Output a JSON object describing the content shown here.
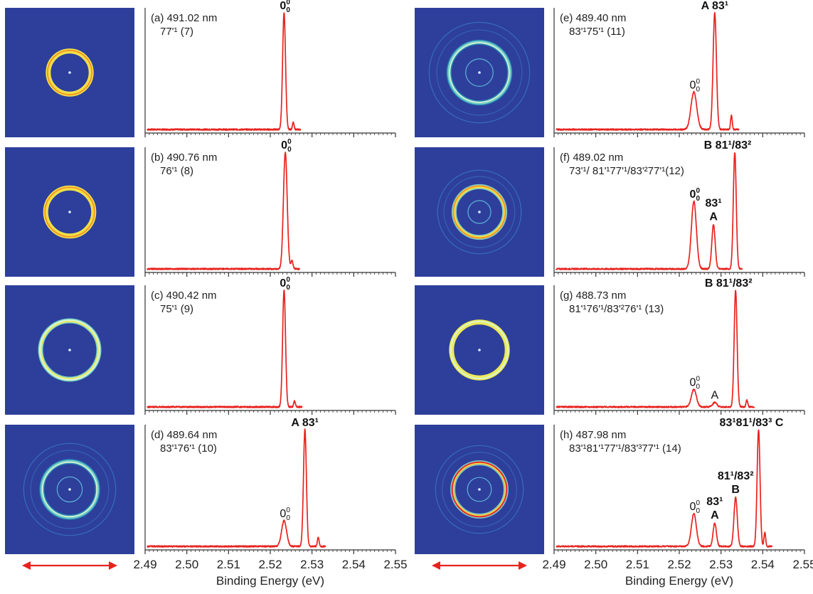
{
  "figure": {
    "xlabel": "Binding Energy (eV)",
    "xticks": [
      "2.49",
      "2.50",
      "2.51",
      "2.52",
      "2.53",
      "2.54",
      "2.55"
    ]
  },
  "chart_data": [
    {
      "type": "line",
      "panel": "a",
      "title": "(a) 491.02 nm",
      "subtitle": "77'¹ (7)",
      "xlabel": "Binding Energy (eV)",
      "xlim": [
        2.49,
        2.55
      ],
      "ring": {
        "style": "single",
        "scale": 0.45,
        "colors": [
          "#f0e84a",
          "#f59a2a",
          "#f0e84a"
        ]
      },
      "peaks": [
        {
          "x": 2.5233,
          "y": 1.0,
          "w": 0.00035
        },
        {
          "x": 2.5255,
          "y": 0.06,
          "w": 0.0002
        }
      ],
      "labels": [
        {
          "text": "0",
          "sup": "0",
          "sub": "0",
          "x": 2.5233,
          "bold": true
        }
      ]
    },
    {
      "type": "line",
      "panel": "b",
      "title": "(b) 490.76 nm",
      "subtitle": "76'¹ (8)",
      "xlabel": "Binding Energy (eV)",
      "xlim": [
        2.49,
        2.55
      ],
      "ring": {
        "style": "single",
        "scale": 0.55,
        "colors": [
          "#f0e84a",
          "#f59a2a",
          "#f0e84a"
        ]
      },
      "peaks": [
        {
          "x": 2.5236,
          "y": 1.0,
          "w": 0.00045
        },
        {
          "x": 2.5252,
          "y": 0.07,
          "w": 0.00025
        }
      ],
      "labels": [
        {
          "text": "0",
          "sup": "0",
          "sub": "0",
          "x": 2.5236,
          "bold": true
        }
      ]
    },
    {
      "type": "line",
      "panel": "c",
      "title": "(c) 490.42 nm",
      "subtitle": "75'¹ (9)",
      "xlabel": "Binding Energy (eV)",
      "xlim": [
        2.49,
        2.55
      ],
      "ring": {
        "style": "single",
        "scale": 0.75,
        "colors": [
          "#f0e84a",
          "#d8f5d0",
          "#7ad0c8"
        ]
      },
      "peaks": [
        {
          "x": 2.5233,
          "y": 1.0,
          "w": 0.00035
        },
        {
          "x": 2.5258,
          "y": 0.05,
          "w": 0.0002
        }
      ],
      "labels": [
        {
          "text": "0",
          "sup": "0",
          "sub": "0",
          "x": 2.5233,
          "bold": true
        }
      ]
    },
    {
      "type": "line",
      "panel": "d",
      "title": "(d) 489.64 nm",
      "subtitle": "83'¹76'¹ (10)",
      "xlabel": "Binding Energy (eV)",
      "xlim": [
        2.49,
        2.55
      ],
      "ring": {
        "style": "multi",
        "scale": 0.7,
        "colors": [
          "#d8f5d0",
          "#7ad0c8",
          "#2a8ab8"
        ]
      },
      "peaks": [
        {
          "x": 2.5233,
          "y": 0.22,
          "w": 0.0006
        },
        {
          "x": 2.5283,
          "y": 1.0,
          "w": 0.00035
        },
        {
          "x": 2.5315,
          "y": 0.08,
          "w": 0.0002
        }
      ],
      "labels": [
        {
          "text": "0",
          "sup": "0",
          "sub": "0",
          "x": 2.5233,
          "bold": false
        },
        {
          "text": "A 83¹",
          "x": 2.5283,
          "bold": true
        }
      ]
    },
    {
      "type": "line",
      "panel": "e",
      "title": "(e) 489.40 nm",
      "subtitle": "83'¹75'¹ (11)",
      "xlabel": "Binding Energy (eV)",
      "xlim": [
        2.49,
        2.55
      ],
      "ring": {
        "style": "multi",
        "scale": 0.8,
        "colors": [
          "#d8f5d0",
          "#7ad0c8",
          "#2a8ab8"
        ]
      },
      "peaks": [
        {
          "x": 2.5235,
          "y": 0.32,
          "w": 0.0007
        },
        {
          "x": 2.5285,
          "y": 1.0,
          "w": 0.0004
        },
        {
          "x": 2.5325,
          "y": 0.12,
          "w": 0.0002
        }
      ],
      "labels": [
        {
          "text": "0",
          "sup": "0",
          "sub": "0",
          "x": 2.5235,
          "bold": false
        },
        {
          "text": "A 83¹",
          "x": 2.5285,
          "bold": true
        }
      ]
    },
    {
      "type": "line",
      "panel": "f",
      "title": "(f) 489.02 nm",
      "subtitle": "73'¹/ 81'¹77'¹/83'²77'¹(12)",
      "xlabel": "Binding Energy (eV)",
      "xlim": [
        2.49,
        2.55
      ],
      "ring": {
        "style": "multi",
        "scale": 0.6,
        "colors": [
          "#f0e84a",
          "#f59a2a",
          "#7ad0c8"
        ]
      },
      "peaks": [
        {
          "x": 2.5235,
          "y": 0.58,
          "w": 0.0006
        },
        {
          "x": 2.5282,
          "y": 0.38,
          "w": 0.0004
        },
        {
          "x": 2.5333,
          "y": 1.0,
          "w": 0.00035
        }
      ],
      "labels": [
        {
          "text": "0",
          "sup": "0",
          "sub": "0",
          "x": 2.5235,
          "bold": true
        },
        {
          "text": "83¹",
          "x": 2.5282,
          "bold": true,
          "line2": "A"
        },
        {
          "text": "B  81¹/83²",
          "x": 2.5333,
          "bold": true
        }
      ]
    },
    {
      "type": "line",
      "panel": "g",
      "title": "(g) 488.73 nm",
      "subtitle": "81'¹76'¹/83'²76'¹ (13)",
      "xlabel": "Binding Energy (eV)",
      "xlim": [
        2.49,
        2.55
      ],
      "ring": {
        "style": "single",
        "scale": 0.7,
        "colors": [
          "#f0e84a",
          "#d8f5d0",
          "#f0e84a"
        ]
      },
      "peaks": [
        {
          "x": 2.5235,
          "y": 0.15,
          "w": 0.0006
        },
        {
          "x": 2.5285,
          "y": 0.04,
          "w": 0.0005
        },
        {
          "x": 2.5335,
          "y": 1.0,
          "w": 0.00035
        },
        {
          "x": 2.5362,
          "y": 0.06,
          "w": 0.0002
        }
      ],
      "labels": [
        {
          "text": "0",
          "sup": "0",
          "sub": "0",
          "x": 2.5235,
          "bold": false
        },
        {
          "text": "A",
          "x": 2.5285,
          "bold": false
        },
        {
          "text": "B 81¹/83²",
          "x": 2.5335,
          "bold": true
        }
      ]
    },
    {
      "type": "line",
      "panel": "h",
      "title": "(h) 487.98 nm",
      "subtitle": "83'¹81'¹77'¹/83'³77'¹ (14)",
      "xlabel": "Binding Energy (eV)",
      "xlim": [
        2.49,
        2.55
      ],
      "ring": {
        "style": "multi",
        "scale": 0.65,
        "colors": [
          "#f0e84a",
          "#e53030",
          "#7ad0c8"
        ]
      },
      "peaks": [
        {
          "x": 2.5235,
          "y": 0.28,
          "w": 0.0006
        },
        {
          "x": 2.5285,
          "y": 0.2,
          "w": 0.0004
        },
        {
          "x": 2.5335,
          "y": 0.42,
          "w": 0.0004
        },
        {
          "x": 2.539,
          "y": 1.0,
          "w": 0.00035
        },
        {
          "x": 2.5405,
          "y": 0.12,
          "w": 0.0002
        }
      ],
      "labels": [
        {
          "text": "0",
          "sup": "0",
          "sub": "0",
          "x": 2.5235,
          "bold": false
        },
        {
          "text": "83¹",
          "x": 2.5285,
          "bold": true,
          "line2": "A"
        },
        {
          "text": "81¹/83²",
          "x": 2.5335,
          "bold": true,
          "line2": "B"
        },
        {
          "text": "83¹81¹/83³ C",
          "x": 2.539,
          "bold": true
        }
      ]
    }
  ],
  "colors": {
    "trace": "#e8231f",
    "vmi_bg": "#2d3f9b",
    "axis": "#333333",
    "arrow": "#e8231f"
  },
  "icons": {
    "arrow": "polarization-double-arrow-icon"
  }
}
